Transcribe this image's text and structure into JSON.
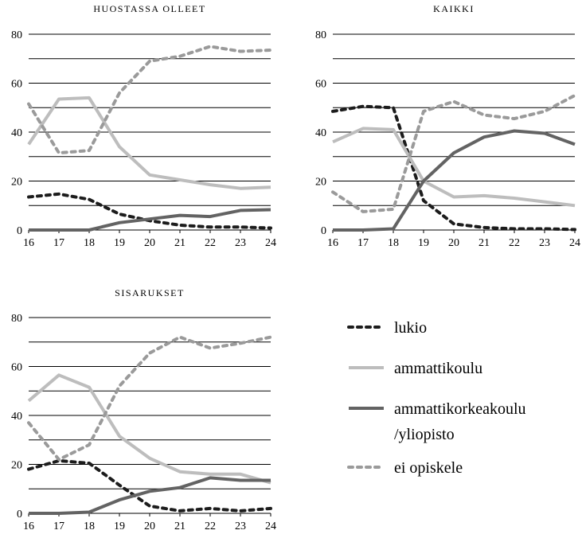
{
  "chart_data": [
    {
      "type": "line",
      "title": "HUOSTASSA OLLEET",
      "x": [
        "16",
        "17",
        "18",
        "19",
        "20",
        "21",
        "22",
        "23",
        "24"
      ],
      "ylim": [
        0,
        80
      ],
      "yticks": [
        "0",
        "20",
        "40",
        "60",
        "80"
      ],
      "grid": true,
      "series": [
        {
          "name": "lukio",
          "values": [
            13.5,
            14.7,
            12.5,
            6.5,
            3.8,
            2.0,
            1.2,
            1.2,
            0.8
          ]
        },
        {
          "name": "ammattikoulu",
          "values": [
            35,
            53.5,
            54,
            34,
            22.5,
            20.5,
            18.5,
            17,
            17.5
          ]
        },
        {
          "name": "ammattikorkeakoulu /yliopisto",
          "values": [
            0,
            0,
            0,
            3,
            4.5,
            6,
            5.5,
            8,
            8.3
          ]
        },
        {
          "name": "ei opiskele",
          "values": [
            51.5,
            31.5,
            32.5,
            56,
            69,
            71,
            75,
            73,
            73.5
          ]
        }
      ]
    },
    {
      "type": "line",
      "title": "KAIKKI",
      "x": [
        "16",
        "17",
        "18",
        "19",
        "20",
        "21",
        "22",
        "23",
        "24"
      ],
      "ylim": [
        0,
        80
      ],
      "yticks": [
        "0",
        "20",
        "40",
        "60",
        "80"
      ],
      "grid": true,
      "series": [
        {
          "name": "lukio",
          "values": [
            48.5,
            50.5,
            50,
            12,
            2.5,
            1,
            0.5,
            0.5,
            0.2
          ]
        },
        {
          "name": "ammattikoulu",
          "values": [
            36,
            41.5,
            41,
            20,
            13.5,
            14,
            13,
            11.5,
            10
          ]
        },
        {
          "name": "ammattikorkeakoulu /yliopisto",
          "values": [
            0,
            0,
            0.5,
            20,
            31.5,
            38,
            40.5,
            39.5,
            35
          ]
        },
        {
          "name": "ei opiskele",
          "values": [
            15.5,
            7.5,
            8.5,
            48.5,
            52.5,
            47,
            45.5,
            48.5,
            55
          ]
        }
      ]
    },
    {
      "type": "line",
      "title": "SISARUKSET",
      "x": [
        "16",
        "17",
        "18",
        "19",
        "20",
        "21",
        "22",
        "23",
        "24"
      ],
      "ylim": [
        0,
        80
      ],
      "yticks": [
        "0",
        "20",
        "40",
        "60",
        "80"
      ],
      "grid": true,
      "series": [
        {
          "name": "lukio",
          "values": [
            18,
            21.5,
            20.5,
            11.5,
            3,
            1,
            2,
            1,
            2
          ]
        },
        {
          "name": "ammattikoulu",
          "values": [
            46,
            56.5,
            51.5,
            31.5,
            22.5,
            17,
            16,
            16,
            12.5
          ]
        },
        {
          "name": "ammattikorkeakoulu /yliopisto",
          "values": [
            0,
            0,
            0.5,
            5.5,
            9,
            10.5,
            14.5,
            13.5,
            13.5
          ]
        },
        {
          "name": "ei opiskele",
          "values": [
            37,
            22,
            28,
            52,
            65.5,
            72,
            67.5,
            69.5,
            72
          ]
        }
      ]
    }
  ],
  "legend": {
    "placement": "bottom-right",
    "items": [
      {
        "label": "lukio",
        "color": "#1c1c1c",
        "dash": "dashed"
      },
      {
        "label": "ammattikoulu",
        "color": "#bdbdbd",
        "dash": "solid"
      },
      {
        "label_lines": [
          "ammattikorkeakoulu",
          "/yliopisto"
        ],
        "color": "#636363",
        "dash": "solid"
      },
      {
        "label": "ei opiskele",
        "color": "#9a9a9a",
        "dash": "dashed"
      }
    ]
  },
  "series_styles": [
    {
      "color": "#1c1c1c",
      "dash": "dashed"
    },
    {
      "color": "#bdbdbd",
      "dash": "solid"
    },
    {
      "color": "#636363",
      "dash": "solid"
    },
    {
      "color": "#9a9a9a",
      "dash": "dashed"
    }
  ]
}
